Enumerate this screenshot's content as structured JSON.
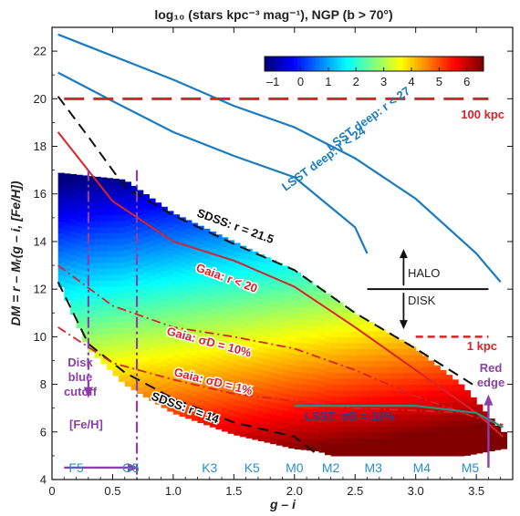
{
  "chart_data": {
    "type": "heatmap",
    "title": "log₁₀ (stars kpc⁻³ mag⁻¹), NGP (b > 70°)",
    "xlabel": "g – i",
    "ylabel": "DM = r – Mᵣ(g – i, [Fe/H])",
    "xlim": [
      0,
      3.8
    ],
    "ylim": [
      4,
      23
    ],
    "xticks": [
      "0",
      "0.5",
      "1.0",
      "1.5",
      "2.0",
      "2.5",
      "3.0",
      "3.5"
    ],
    "yticks": [
      "4",
      "6",
      "8",
      "10",
      "12",
      "14",
      "16",
      "18",
      "20",
      "22"
    ],
    "grid": false,
    "colorbar": {
      "ticks": [
        "–1",
        "0",
        "1",
        "2",
        "3",
        "4",
        "5",
        "6"
      ],
      "min": -1.3,
      "max": 6.6,
      "placement": "top-right"
    },
    "density_region": {
      "upper_edge": [
        [
          0.05,
          16.9
        ],
        [
          0.6,
          16.6
        ],
        [
          1.0,
          15.2
        ],
        [
          1.5,
          14.0
        ],
        [
          2.0,
          12.8
        ],
        [
          2.5,
          11.0
        ],
        [
          3.0,
          9.5
        ],
        [
          3.4,
          7.9
        ],
        [
          3.72,
          6.0
        ]
      ],
      "lower_edge": [
        [
          0.05,
          12.4
        ],
        [
          0.3,
          9.5
        ],
        [
          0.6,
          8.0
        ],
        [
          1.0,
          6.8
        ],
        [
          1.5,
          5.9
        ],
        [
          2.0,
          5.3
        ],
        [
          2.2,
          5.2
        ],
        [
          2.3,
          5.0
        ],
        [
          3.4,
          5.0
        ],
        [
          3.72,
          5.3
        ]
      ]
    },
    "series": [
      {
        "name": "LSST deep: r < 27",
        "points": [
          [
            0.05,
            22.7
          ],
          [
            0.5,
            21.8
          ],
          [
            1.0,
            20.8
          ],
          [
            1.5,
            19.7
          ],
          [
            2.0,
            18.8
          ],
          [
            2.5,
            17.5
          ],
          [
            3.0,
            15.8
          ],
          [
            3.5,
            13.5
          ],
          [
            3.7,
            12.3
          ]
        ]
      },
      {
        "name": "LSST deep: r < 24",
        "points": [
          [
            0.05,
            21.1
          ],
          [
            0.5,
            19.9
          ],
          [
            1.0,
            18.6
          ],
          [
            1.5,
            17.6
          ],
          [
            2.0,
            16.7
          ],
          [
            2.5,
            14.6
          ],
          [
            2.6,
            13.5
          ]
        ]
      },
      {
        "name": "SDSS: r = 21.5",
        "points": [
          [
            0.05,
            20.1
          ],
          [
            0.3,
            18.4
          ],
          [
            0.6,
            16.3
          ],
          [
            1.0,
            15.1
          ],
          [
            1.5,
            13.9
          ],
          [
            2.0,
            12.8
          ],
          [
            2.5,
            11.0
          ],
          [
            3.0,
            9.5
          ],
          [
            3.5,
            7.9
          ]
        ]
      },
      {
        "name": "SDSS: r = 14",
        "points": [
          [
            0.05,
            12.3
          ],
          [
            0.3,
            9.7
          ],
          [
            0.6,
            8.5
          ],
          [
            1.0,
            7.4
          ],
          [
            1.5,
            6.4
          ],
          [
            2.0,
            5.8
          ],
          [
            2.2,
            5.0
          ]
        ]
      },
      {
        "name": "Gaia: r < 20",
        "points": [
          [
            0.05,
            18.6
          ],
          [
            0.5,
            15.7
          ],
          [
            1.0,
            14.0
          ],
          [
            1.5,
            13.2
          ],
          [
            2.0,
            12.1
          ],
          [
            2.5,
            10.4
          ],
          [
            3.0,
            8.6
          ],
          [
            3.5,
            6.8
          ],
          [
            3.72,
            5.8
          ]
        ]
      },
      {
        "name": "Gaia: σD = 10%",
        "points": [
          [
            0.05,
            13.0
          ],
          [
            0.5,
            11.3
          ],
          [
            1.0,
            10.4
          ],
          [
            1.5,
            10.0
          ],
          [
            2.0,
            9.5
          ],
          [
            2.5,
            8.6
          ],
          [
            3.0,
            7.5
          ],
          [
            3.5,
            6.6
          ],
          [
            3.72,
            6.3
          ]
        ]
      },
      {
        "name": "Gaia: σD = 1%",
        "points": [
          [
            0.05,
            10.4
          ],
          [
            0.5,
            8.9
          ],
          [
            1.0,
            8.2
          ],
          [
            1.5,
            7.6
          ],
          [
            2.0,
            7.3
          ],
          [
            2.5,
            7.0
          ],
          [
            3.0,
            6.9
          ],
          [
            3.4,
            6.8
          ]
        ]
      },
      {
        "name": "LSST: σD = 10%",
        "points": [
          [
            2.0,
            7.1
          ],
          [
            3.0,
            7.1
          ],
          [
            3.5,
            6.8
          ],
          [
            3.72,
            6.2
          ]
        ]
      }
    ],
    "reference_lines": [
      {
        "label": "100 kpc",
        "y": 20,
        "x_range": [
          0.1,
          3.6
        ]
      },
      {
        "label": "1 kpc",
        "y": 10,
        "x_range": [
          3.0,
          3.6
        ]
      },
      {
        "label": "",
        "y": 12,
        "x_range": [
          2.6,
          3.6
        ]
      }
    ],
    "vertical_markers": [
      {
        "label": "Disk blue cutoff",
        "x": 0.3,
        "y_range": [
          7.5,
          17
        ]
      },
      {
        "label": "",
        "x": 0.7,
        "y_range": [
          4,
          17
        ]
      },
      {
        "label": "Red edge",
        "x": 3.6,
        "y_range": [
          4.5,
          7.5
        ]
      }
    ],
    "halo_disk_arrow": {
      "x": 2.9,
      "y_boundary": 12,
      "up_label": "HALO",
      "down_label": "DISK"
    },
    "feh_arrow": {
      "label": "[Fe/H]",
      "y": 4.5,
      "x_range": [
        0.1,
        0.7
      ]
    },
    "spectral_types": [
      {
        "label": "F5",
        "x": 0.2
      },
      {
        "label": "G5",
        "x": 0.65
      },
      {
        "label": "K3",
        "x": 1.3
      },
      {
        "label": "K5",
        "x": 1.65
      },
      {
        "label": "M0",
        "x": 2.0
      },
      {
        "label": "M2",
        "x": 2.3
      },
      {
        "label": "M3",
        "x": 2.65
      },
      {
        "label": "M4",
        "x": 3.05
      },
      {
        "label": "M5",
        "x": 3.45
      }
    ],
    "colors": {
      "lsst_deep": "#1a7bbf",
      "sdss": "#111111",
      "gaia": "#d8232a",
      "reference": "#d8232a",
      "marker": "#8b3fa8",
      "spectral": "#2a8fc8",
      "lsst_sigma": "#2a3f8f"
    }
  }
}
